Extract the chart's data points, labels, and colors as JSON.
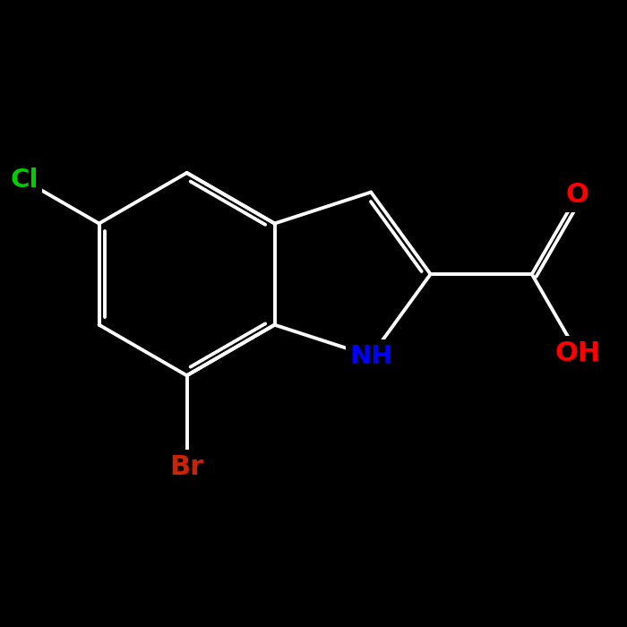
{
  "background_color": "#000000",
  "bond_color": "#ffffff",
  "atom_colors": {
    "O": "#ff0000",
    "N": "#0000ff",
    "Cl": "#00cc00",
    "Br": "#cc2200",
    "C": "#ffffff",
    "H": "#ffffff"
  },
  "font_size_atom": 20,
  "line_width": 2.8,
  "figsize": [
    7.0,
    7.0
  ],
  "dpi": 100
}
